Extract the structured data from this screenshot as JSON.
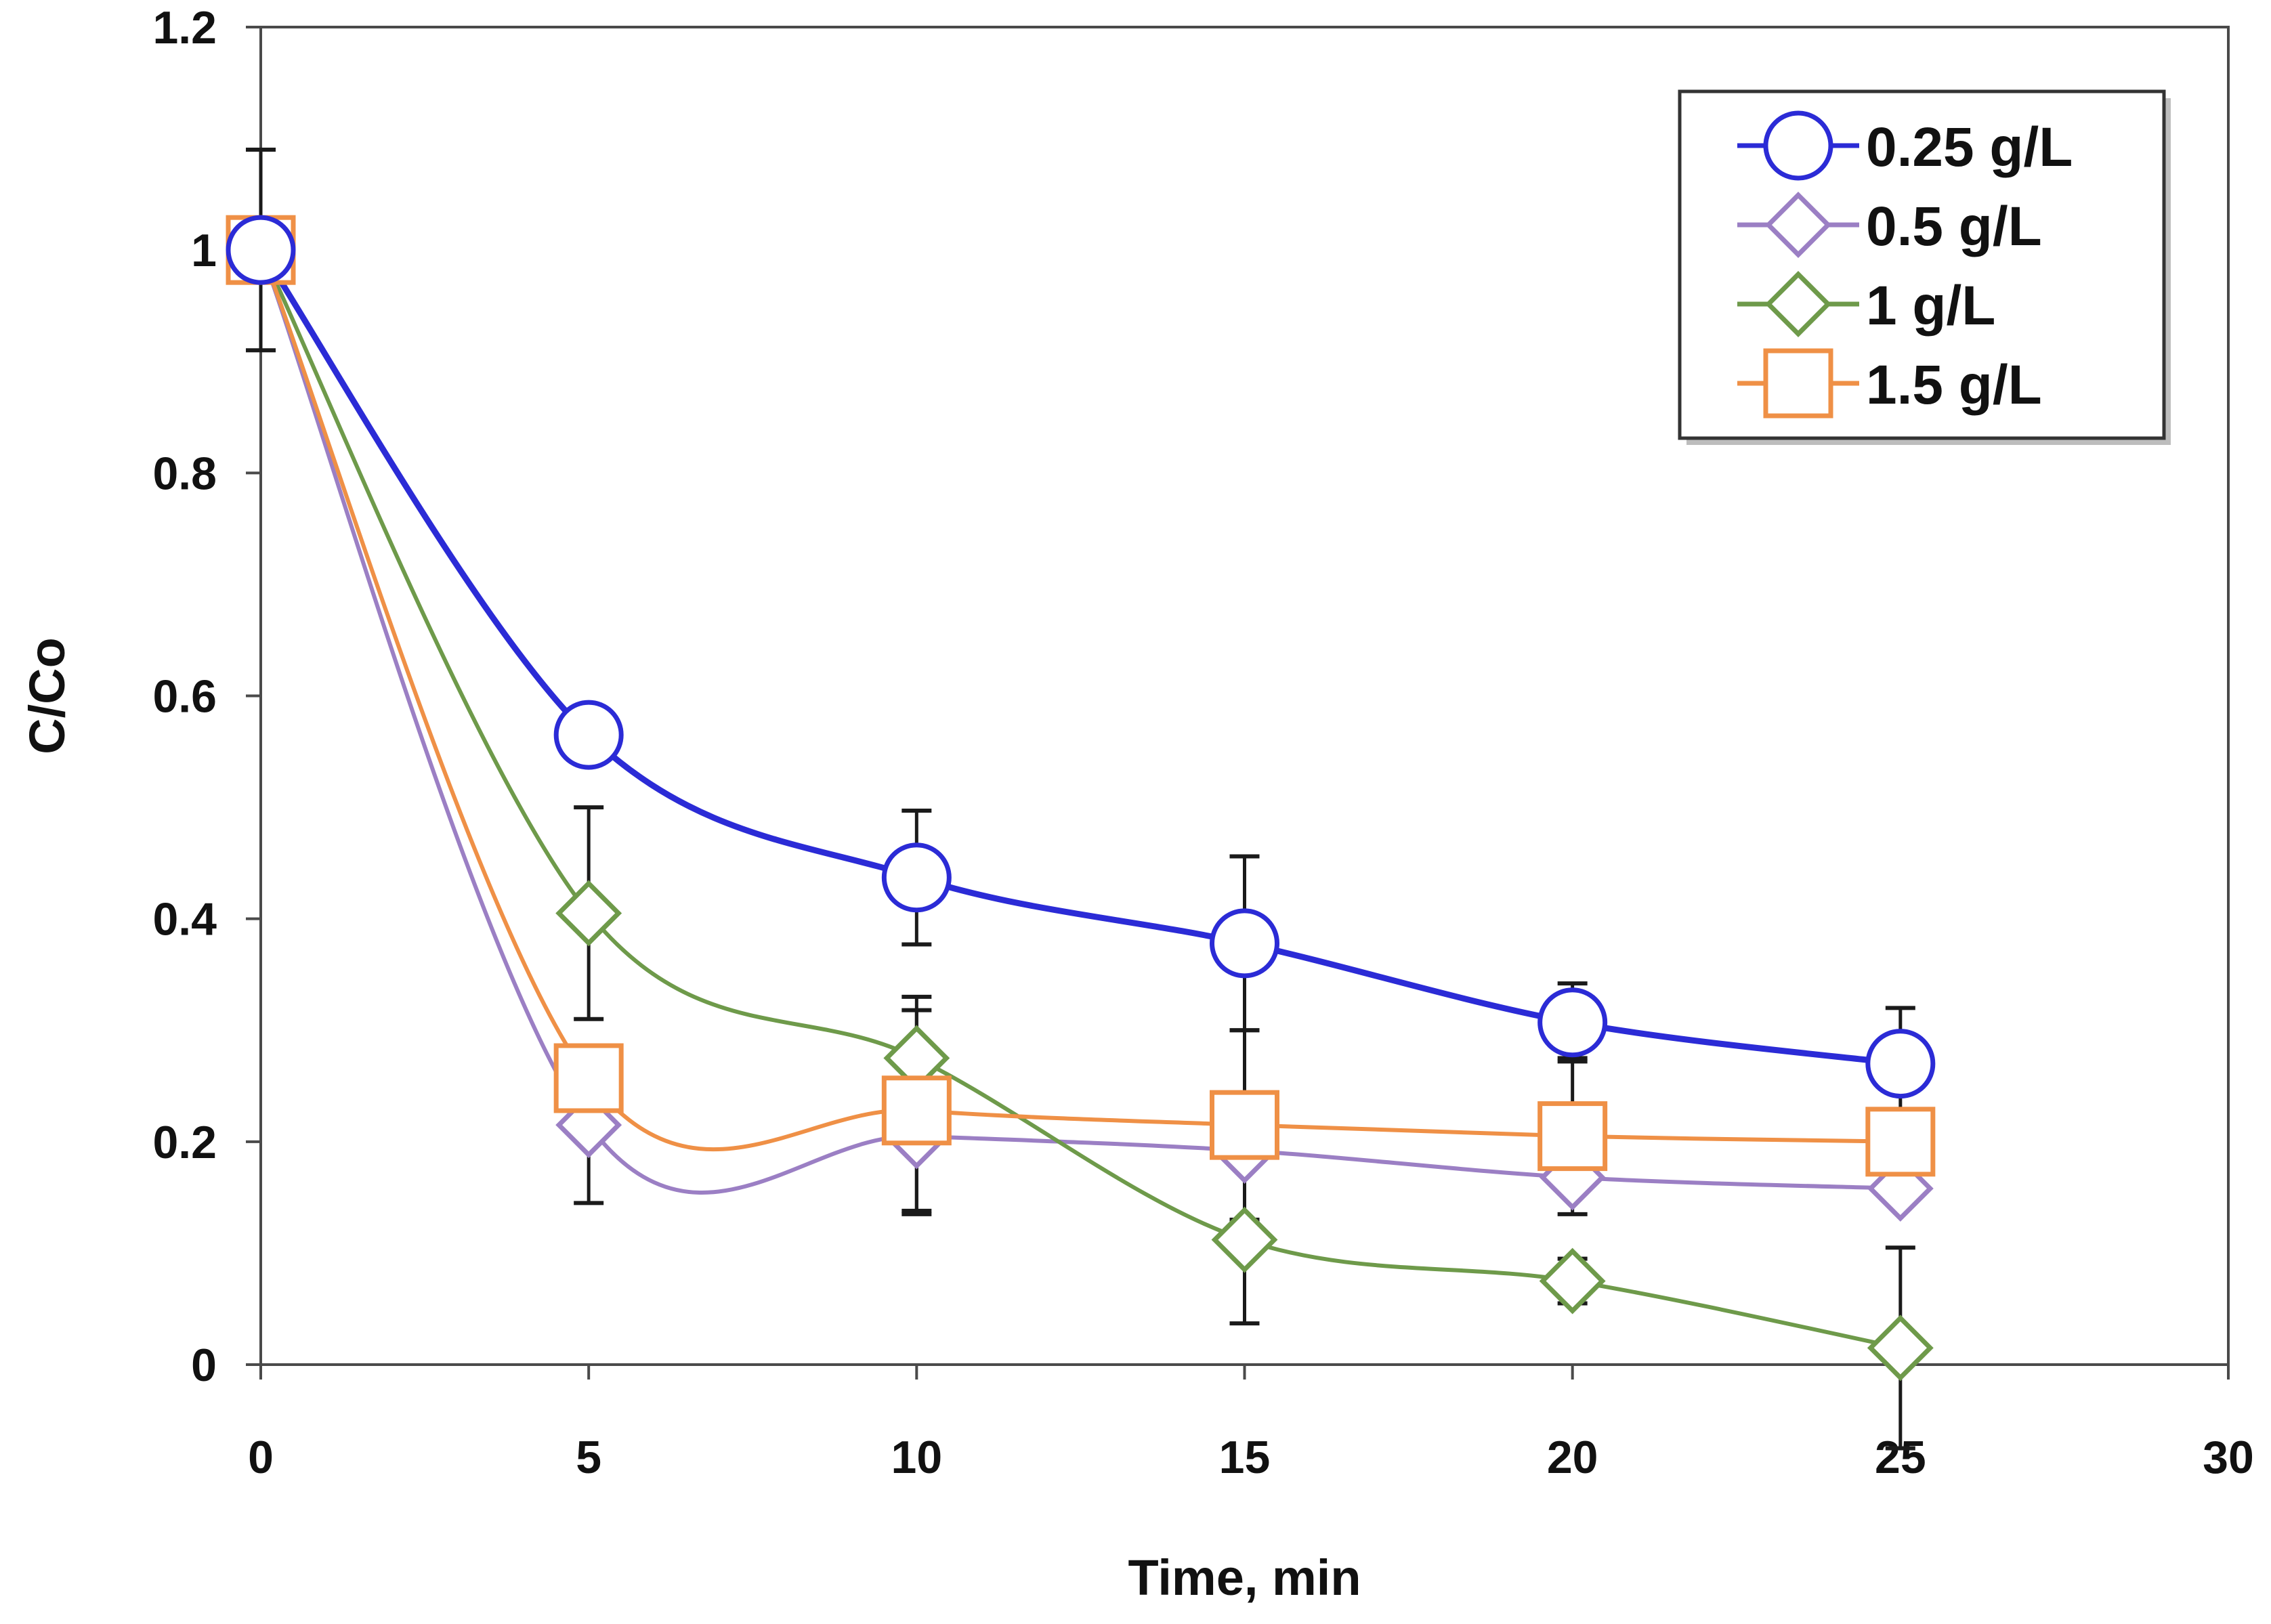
{
  "chart_data": {
    "type": "line",
    "title": "",
    "xlabel": "Time, min",
    "ylabel": "C/Co",
    "xlim": [
      0,
      30
    ],
    "ylim": [
      0,
      1.2
    ],
    "xticks": [
      0,
      5,
      10,
      15,
      20,
      25,
      30
    ],
    "yticks": [
      0,
      0.2,
      0.4,
      0.6,
      0.8,
      1,
      1.2
    ],
    "xtick_labels": [
      "0",
      "5",
      "10",
      "15",
      "20",
      "25",
      "30"
    ],
    "ytick_labels": [
      "0",
      "0.2",
      "0.4",
      "0.6",
      "0.8",
      "1",
      "1.2"
    ],
    "grid": false,
    "legend_position": "top-right",
    "smoothed_lines": true,
    "x": [
      0,
      5,
      10,
      15,
      20,
      25
    ],
    "series": [
      {
        "name": "0.25 g/L",
        "color": "#2b2bd6",
        "marker": "circle",
        "values": [
          1.0,
          0.565,
          0.437,
          0.378,
          0.307,
          0.27
        ],
        "errors": [
          0.09,
          0.0,
          0.06,
          0.078,
          0.035,
          0.05
        ]
      },
      {
        "name": "0.5 g/L",
        "color": "#9b7fc4",
        "marker": "diamond",
        "values": [
          1.0,
          0.215,
          0.205,
          0.192,
          0.168,
          0.158
        ],
        "errors": [
          0.0,
          0.07,
          0.07,
          0.0,
          0.0,
          0.0
        ]
      },
      {
        "name": "1 g/L",
        "color": "#6e9a4a",
        "marker": "diamond",
        "values": [
          1.0,
          0.405,
          0.275,
          0.112,
          0.075,
          0.015
        ],
        "errors": [
          0.0,
          0.095,
          0.055,
          0.075,
          0.02,
          0.09
        ]
      },
      {
        "name": "1.5 g/L",
        "color": "#ef9046",
        "marker": "square",
        "values": [
          1.0,
          0.257,
          0.228,
          0.215,
          0.205,
          0.2
        ],
        "errors": [
          0.0,
          0.0,
          0.09,
          0.085,
          0.07,
          0.0
        ]
      }
    ]
  }
}
